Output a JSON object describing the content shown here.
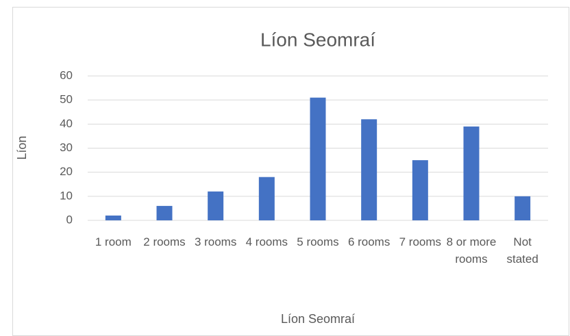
{
  "chart_data": {
    "type": "bar",
    "title": "Líon Seomraí",
    "x_label": "Líon Seomraí",
    "y_label": "Líon",
    "categories": [
      "1 room",
      "2 rooms",
      "3 rooms",
      "4 rooms",
      "5 rooms",
      "6 rooms",
      "7 rooms",
      "8 or more rooms",
      "Not stated"
    ],
    "values": [
      2,
      6,
      12,
      18,
      51,
      42,
      25,
      39,
      10
    ],
    "color": "#4472c4",
    "ylim": [
      0,
      60
    ],
    "yticks": [
      0,
      10,
      20,
      30,
      40,
      50,
      60
    ],
    "grid": true
  }
}
